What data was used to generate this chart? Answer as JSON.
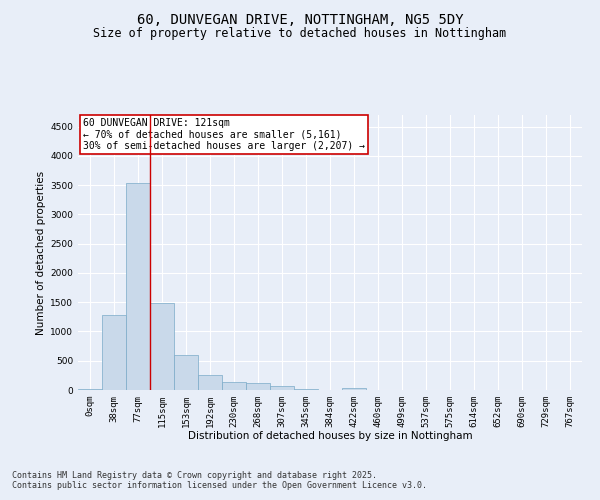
{
  "title_line1": "60, DUNVEGAN DRIVE, NOTTINGHAM, NG5 5DY",
  "title_line2": "Size of property relative to detached houses in Nottingham",
  "xlabel": "Distribution of detached houses by size in Nottingham",
  "ylabel": "Number of detached properties",
  "bar_color": "#c9d9ea",
  "bar_edge_color": "#7aaac8",
  "vline_color": "#cc0000",
  "annotation_text": "60 DUNVEGAN DRIVE: 121sqm\n← 70% of detached houses are smaller (5,161)\n30% of semi-detached houses are larger (2,207) →",
  "annotation_box_color": "#ffffff",
  "annotation_border_color": "#cc0000",
  "categories": [
    "0sqm",
    "38sqm",
    "77sqm",
    "115sqm",
    "153sqm",
    "192sqm",
    "230sqm",
    "268sqm",
    "307sqm",
    "345sqm",
    "384sqm",
    "422sqm",
    "460sqm",
    "499sqm",
    "537sqm",
    "575sqm",
    "614sqm",
    "652sqm",
    "690sqm",
    "729sqm",
    "767sqm"
  ],
  "bar_heights": [
    15,
    1280,
    3530,
    1490,
    600,
    255,
    130,
    120,
    60,
    20,
    0,
    35,
    0,
    0,
    0,
    0,
    0,
    0,
    0,
    0,
    0
  ],
  "ylim": [
    0,
    4700
  ],
  "yticks": [
    0,
    500,
    1000,
    1500,
    2000,
    2500,
    3000,
    3500,
    4000,
    4500
  ],
  "background_color": "#e8eef8",
  "grid_color": "#ffffff",
  "footnote": "Contains HM Land Registry data © Crown copyright and database right 2025.\nContains public sector information licensed under the Open Government Licence v3.0.",
  "title_fontsize": 10,
  "subtitle_fontsize": 8.5,
  "axis_label_fontsize": 7.5,
  "tick_fontsize": 6.5,
  "annotation_fontsize": 7,
  "footnote_fontsize": 6
}
